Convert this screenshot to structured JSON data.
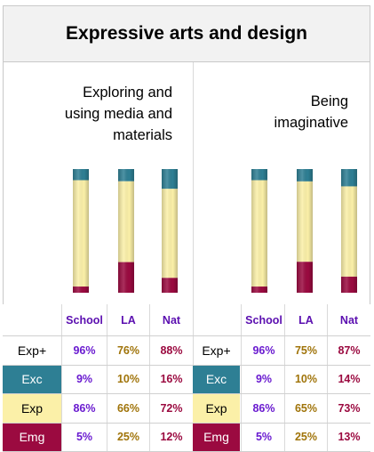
{
  "chart_data": {
    "type": "bar",
    "title": "Expressive arts and design",
    "categories": [
      "School",
      "LA",
      "Nat"
    ],
    "colors": {
      "exceeding": "#2e7f94",
      "expected": "#fbf0a8",
      "emerging": "#9b0a40",
      "header": "#5b0fb0",
      "school_text": "#6a1bd0",
      "la_text": "#a0740a",
      "nat_text": "#9b0a40"
    },
    "panels": [
      {
        "title": "Exploring and\nusing media and\nmaterials",
        "series": [
          {
            "name": "Exc",
            "values": [
              9,
              10,
              16
            ]
          },
          {
            "name": "Exp",
            "values": [
              86,
              66,
              72
            ]
          },
          {
            "name": "Emg",
            "values": [
              5,
              25,
              12
            ]
          }
        ],
        "exp_plus": [
          96,
          76,
          88
        ]
      },
      {
        "title": "Being\nimaginative",
        "series": [
          {
            "name": "Exc",
            "values": [
              9,
              10,
              14
            ]
          },
          {
            "name": "Exp",
            "values": [
              86,
              65,
              73
            ]
          },
          {
            "name": "Emg",
            "values": [
              5,
              25,
              13
            ]
          }
        ],
        "exp_plus": [
          96,
          75,
          87
        ]
      }
    ],
    "table": {
      "headers": [
        "School",
        "LA",
        "Nat"
      ],
      "rows": [
        {
          "label": "Exp+",
          "left": [
            "96%",
            "76%",
            "88%"
          ],
          "right": [
            "96%",
            "75%",
            "87%"
          ]
        },
        {
          "label": "Exc",
          "left": [
            "9%",
            "10%",
            "16%"
          ],
          "right": [
            "9%",
            "10%",
            "14%"
          ]
        },
        {
          "label": "Exp",
          "left": [
            "86%",
            "66%",
            "72%"
          ],
          "right": [
            "86%",
            "65%",
            "73%"
          ]
        },
        {
          "label": "Emg",
          "left": [
            "5%",
            "25%",
            "12%"
          ],
          "right": [
            "5%",
            "25%",
            "13%"
          ]
        }
      ]
    }
  }
}
